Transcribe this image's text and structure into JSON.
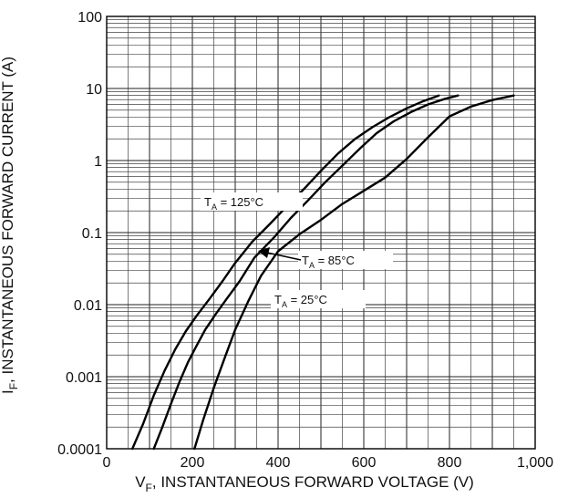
{
  "chart_data": {
    "type": "line",
    "xlabel_main": "V",
    "xlabel_sub": "F",
    "xlabel_rest": ", INSTANTANEOUS FORWARD VOLTAGE (V)",
    "ylabel_main": "I",
    "ylabel_sub": "F",
    "ylabel_rest": ", INSTANTANEOUS FORWARD CURRENT (A)",
    "xlim": [
      0,
      1000
    ],
    "ylim": [
      0.0001,
      100
    ],
    "y_scale": "log",
    "grid": true,
    "x_ticks": [
      {
        "value": 0,
        "label": "0"
      },
      {
        "value": 200,
        "label": "200"
      },
      {
        "value": 400,
        "label": "400"
      },
      {
        "value": 600,
        "label": "600"
      },
      {
        "value": 800,
        "label": "800"
      },
      {
        "value": 1000,
        "label": "1,000"
      }
    ],
    "y_ticks": [
      {
        "value": 100,
        "label": "100"
      },
      {
        "value": 10,
        "label": "10"
      },
      {
        "value": 1,
        "label": "1"
      },
      {
        "value": 0.1,
        "label": "0.1"
      },
      {
        "value": 0.01,
        "label": "0.01"
      },
      {
        "value": 0.001,
        "label": "0.001"
      },
      {
        "value": 0.0001,
        "label": "0.0001"
      }
    ],
    "series": [
      {
        "name_main": "T",
        "name_sub": "A",
        "name_rest": " = 125°C",
        "x": [
          60,
          85,
          110,
          135,
          160,
          185,
          210,
          240,
          270,
          300,
          340,
          380,
          420,
          460,
          500,
          540,
          580,
          620,
          660,
          700,
          740,
          775
        ],
        "y": [
          0.0001,
          0.00022,
          0.00055,
          0.0012,
          0.0024,
          0.0043,
          0.007,
          0.012,
          0.021,
          0.038,
          0.075,
          0.13,
          0.23,
          0.4,
          0.72,
          1.25,
          2.0,
          2.9,
          4.0,
          5.3,
          6.7,
          8.0
        ]
      },
      {
        "name_main": "T",
        "name_sub": "A",
        "name_rest": " = 85°C",
        "x": [
          110,
          130,
          150,
          170,
          190,
          210,
          230,
          255,
          280,
          310,
          345,
          390,
          430,
          470,
          510,
          550,
          590,
          630,
          670,
          710,
          750,
          790,
          820
        ],
        "y": [
          0.0001,
          0.0002,
          0.00042,
          0.00085,
          0.0016,
          0.0027,
          0.0045,
          0.0075,
          0.012,
          0.021,
          0.045,
          0.085,
          0.16,
          0.28,
          0.5,
          0.85,
          1.45,
          2.4,
          3.5,
          4.7,
          6.0,
          7.2,
          8.0
        ]
      },
      {
        "name_main": "T",
        "name_sub": "A",
        "name_rest": " = 25°C",
        "x": [
          205,
          225,
          250,
          275,
          300,
          330,
          360,
          400,
          450,
          500,
          550,
          600,
          650,
          700,
          750,
          800,
          850,
          900,
          950
        ],
        "y": [
          0.0001,
          0.00025,
          0.0007,
          0.0018,
          0.0045,
          0.011,
          0.025,
          0.055,
          0.095,
          0.15,
          0.25,
          0.38,
          0.58,
          1.05,
          2.1,
          4.1,
          5.6,
          6.9,
          8.0
        ]
      }
    ]
  }
}
